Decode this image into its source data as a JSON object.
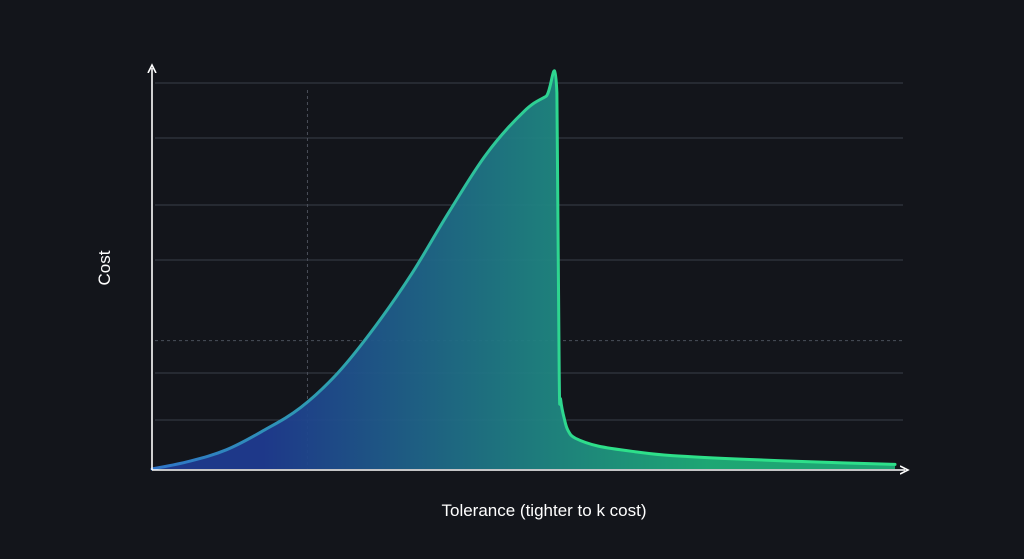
{
  "colors": {
    "background": "#13151b",
    "grid": "#3a3e48",
    "axis": "#ffffff",
    "fill_start": "#1f3a8f",
    "fill_end": "#1fae78",
    "line_start": "#2f74c8",
    "line_end": "#2ee08a"
  },
  "chart_data": {
    "type": "area",
    "title": "",
    "xlabel": "Tolerance (tighter to k cost)",
    "ylabel": "Cost",
    "tick_labels_shown": false,
    "grid": true,
    "xlim": [
      0,
      1
    ],
    "ylim": [
      0,
      1
    ],
    "reference_lines": {
      "vertical_x": 0.22,
      "horizontal_y": 0.35
    },
    "x": [
      0.0,
      0.05,
      0.1,
      0.15,
      0.2,
      0.25,
      0.3,
      0.35,
      0.4,
      0.45,
      0.5,
      0.53,
      0.545,
      0.548,
      0.55,
      0.555,
      0.56,
      0.57,
      0.6,
      0.65,
      0.7,
      0.8,
      0.9,
      1.0
    ],
    "values": [
      0.0,
      0.02,
      0.05,
      0.1,
      0.16,
      0.25,
      0.37,
      0.51,
      0.67,
      0.82,
      0.93,
      0.97,
      0.98,
      0.25,
      0.18,
      0.13,
      0.1,
      0.08,
      0.06,
      0.045,
      0.035,
      0.025,
      0.018,
      0.012
    ]
  }
}
